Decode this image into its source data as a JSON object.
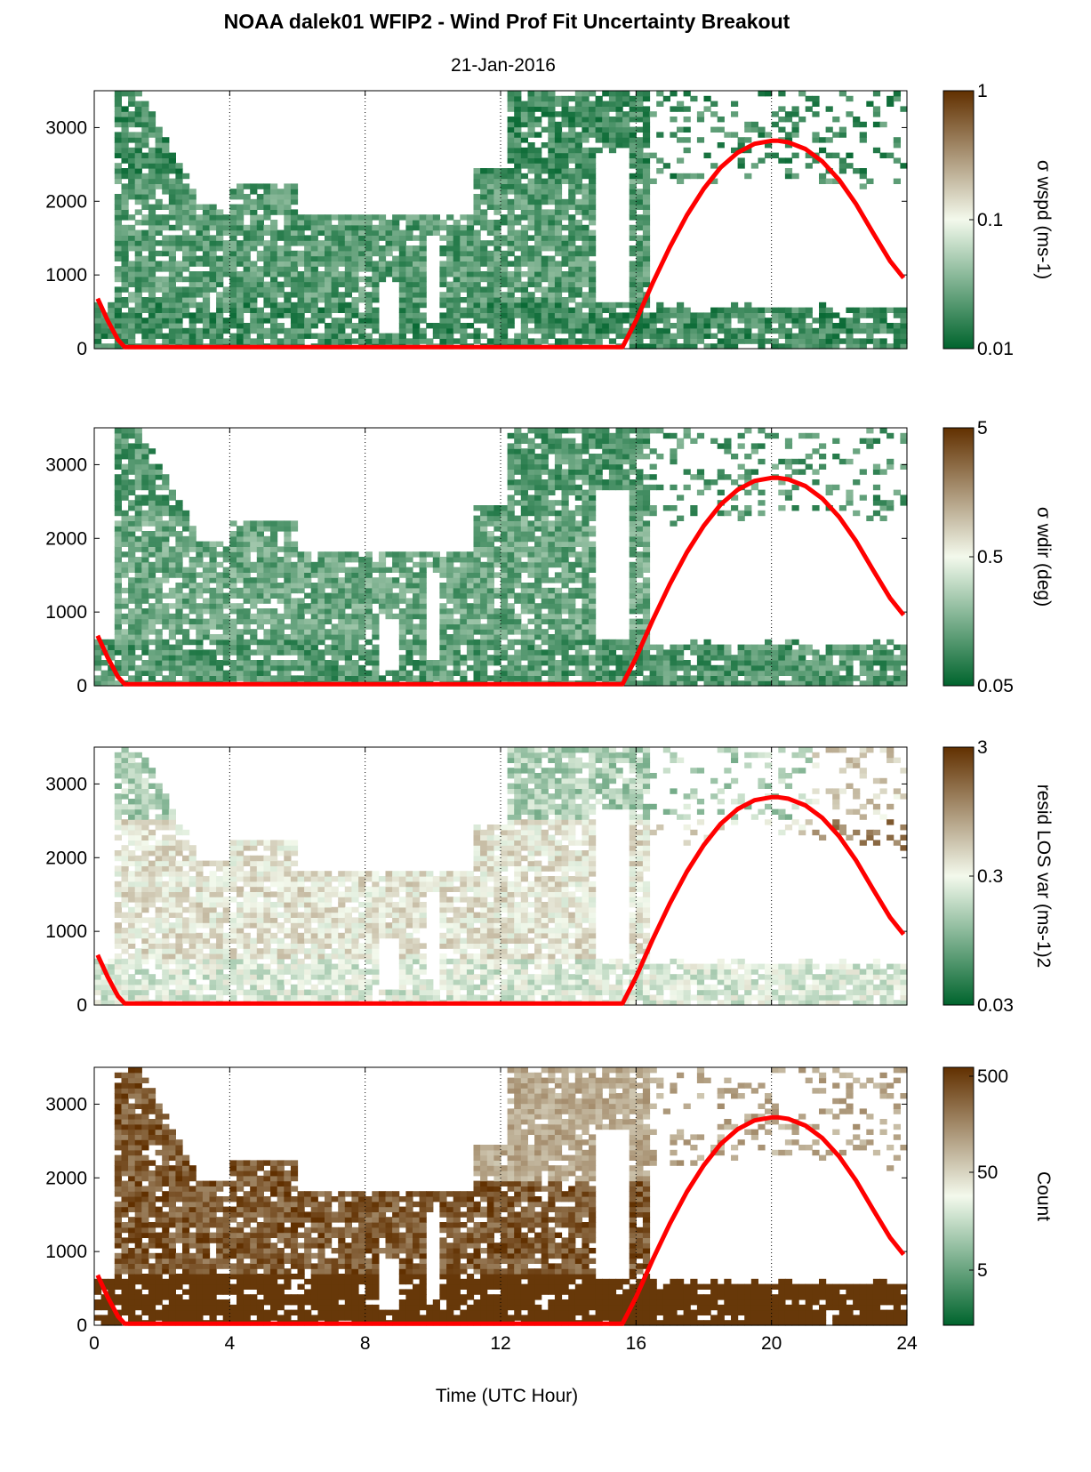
{
  "title": "NOAA dalek01 WFIP2 - Wind Prof Fit Uncertainty Breakout",
  "date": "21-Jan-2016",
  "xlabel": "Time (UTC Hour)",
  "colors": {
    "curve": "#ff0000",
    "low": "#00642d",
    "mid": "#f3f9ec",
    "high": "#613000"
  },
  "chart_data": [
    {
      "type": "heatmap",
      "colorbar_label": "σ wspd (ms-1)",
      "colorbar_ticks": [
        "1",
        "0.1",
        "0.01"
      ],
      "colorbar_scale": "log",
      "colorbar_range": [
        0.01,
        1
      ],
      "x": {
        "range": [
          0,
          24
        ],
        "ticks": [
          "0",
          "4",
          "8",
          "12",
          "16",
          "20",
          "24"
        ]
      },
      "y": {
        "range": [
          0,
          3500
        ],
        "ticks": [
          "0",
          "1000",
          "2000",
          "3000"
        ]
      },
      "vertical_lines": [
        4,
        8,
        12,
        16,
        20,
        24
      ]
    },
    {
      "type": "heatmap",
      "colorbar_label": "σ wdir (deg)",
      "colorbar_ticks": [
        "5",
        "0.5",
        "0.05"
      ],
      "colorbar_scale": "log",
      "colorbar_range": [
        0.05,
        5
      ],
      "x": {
        "range": [
          0,
          24
        ],
        "ticks": [
          "0",
          "4",
          "8",
          "12",
          "16",
          "20",
          "24"
        ]
      },
      "y": {
        "range": [
          0,
          3500
        ],
        "ticks": [
          "0",
          "1000",
          "2000",
          "3000"
        ]
      },
      "vertical_lines": [
        4,
        8,
        12,
        16,
        20,
        24
      ]
    },
    {
      "type": "heatmap",
      "colorbar_label": "resid LOS var (ms-1)2",
      "colorbar_ticks": [
        "3",
        "0.3",
        "0.03"
      ],
      "colorbar_scale": "log",
      "colorbar_range": [
        0.03,
        3
      ],
      "x": {
        "range": [
          0,
          24
        ],
        "ticks": [
          "0",
          "4",
          "8",
          "12",
          "16",
          "20",
          "24"
        ]
      },
      "y": {
        "range": [
          0,
          3500
        ],
        "ticks": [
          "0",
          "1000",
          "2000",
          "3000"
        ]
      },
      "vertical_lines": [
        4,
        8,
        12,
        16,
        20,
        24
      ]
    },
    {
      "type": "heatmap",
      "colorbar_label": "Count",
      "colorbar_ticks": [
        "500",
        "50",
        "5"
      ],
      "colorbar_scale": "log",
      "colorbar_range": [
        1,
        800
      ],
      "x": {
        "range": [
          0,
          24
        ],
        "ticks": [
          "0",
          "4",
          "8",
          "12",
          "16",
          "20",
          "24"
        ],
        "label": "Time (UTC Hour)"
      },
      "y": {
        "range": [
          0,
          3500
        ],
        "ticks": [
          "0",
          "1000",
          "2000",
          "3000"
        ]
      },
      "vertical_lines": [
        4,
        8,
        12,
        16,
        20,
        24
      ]
    }
  ],
  "curve": {
    "name": "",
    "x": [
      0.1,
      0.4,
      0.7,
      0.9,
      15.6,
      16.0,
      16.5,
      17.0,
      17.5,
      18.0,
      18.5,
      19.0,
      19.5,
      20.0,
      20.2,
      20.5,
      21.0,
      21.5,
      22.0,
      22.5,
      23.0,
      23.5,
      23.9
    ],
    "y": [
      680,
      380,
      120,
      20,
      20,
      380,
      900,
      1380,
      1810,
      2170,
      2460,
      2660,
      2780,
      2820,
      2820,
      2800,
      2710,
      2540,
      2290,
      1960,
      1570,
      1190,
      960
    ]
  }
}
